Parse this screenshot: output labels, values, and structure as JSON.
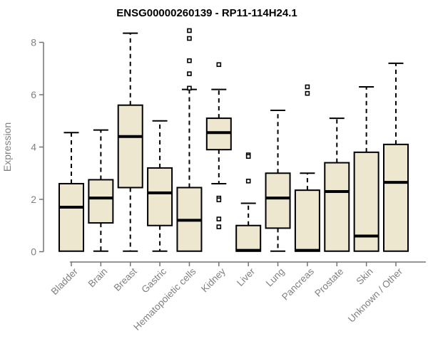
{
  "chart_data": {
    "type": "boxplot",
    "title": "ENSG00000260139 - RP11-114H24.1",
    "ylabel": "Expression",
    "xlabel": "",
    "yticks": [
      0,
      2,
      4,
      6,
      8
    ],
    "ylim": [
      -0.3,
      8.6
    ],
    "grid": false,
    "legend_position": "none",
    "categories": [
      "Bladder",
      "Brain",
      "Breast",
      "Gastric",
      "Hematopoietic cells",
      "Kidney",
      "Liver",
      "Lung",
      "Pancreas",
      "Prostate",
      "Skin",
      "Unknown / Other"
    ],
    "series": [
      {
        "category": "Bladder",
        "whisker_low": 0.02,
        "q1": 0.02,
        "median": 1.7,
        "q3": 2.6,
        "whisker_high": 4.55,
        "outliers": []
      },
      {
        "category": "Brain",
        "whisker_low": 0.02,
        "q1": 1.1,
        "median": 2.05,
        "q3": 2.75,
        "whisker_high": 4.65,
        "outliers": []
      },
      {
        "category": "Breast",
        "whisker_low": 0.02,
        "q1": 2.45,
        "median": 4.4,
        "q3": 5.6,
        "whisker_high": 8.35,
        "outliers": []
      },
      {
        "category": "Gastric",
        "whisker_low": 0.02,
        "q1": 1.0,
        "median": 2.25,
        "q3": 3.2,
        "whisker_high": 5.0,
        "outliers": []
      },
      {
        "category": "Hematopoietic cells",
        "whisker_low": 0.02,
        "q1": 0.02,
        "median": 1.2,
        "q3": 2.45,
        "whisker_high": 6.2,
        "outliers": [
          8.45,
          8.15,
          7.3,
          6.8,
          6.25
        ]
      },
      {
        "category": "Kidney",
        "whisker_low": 2.6,
        "q1": 3.9,
        "median": 4.55,
        "q3": 5.1,
        "whisker_high": 6.2,
        "outliers": [
          7.15,
          2.05,
          1.98,
          1.25,
          0.95
        ]
      },
      {
        "category": "Liver",
        "whisker_low": 0.02,
        "q1": 0.02,
        "median": 0.05,
        "q3": 1.0,
        "whisker_high": 1.85,
        "outliers": [
          3.7,
          3.64,
          2.7
        ]
      },
      {
        "category": "Lung",
        "whisker_low": 0.02,
        "q1": 0.9,
        "median": 2.05,
        "q3": 3.0,
        "whisker_high": 5.4,
        "outliers": []
      },
      {
        "category": "Pancreas",
        "whisker_low": 0.02,
        "q1": 0.02,
        "median": 0.05,
        "q3": 2.35,
        "whisker_high": 3.0,
        "outliers": [
          6.3,
          6.05
        ]
      },
      {
        "category": "Prostate",
        "whisker_low": 0.02,
        "q1": 0.02,
        "median": 2.3,
        "q3": 3.4,
        "whisker_high": 5.1,
        "outliers": []
      },
      {
        "category": "Skin",
        "whisker_low": 0.02,
        "q1": 0.02,
        "median": 0.6,
        "q3": 3.8,
        "whisker_high": 6.3,
        "outliers": []
      },
      {
        "category": "Unknown / Other",
        "whisker_low": 0.02,
        "q1": 0.02,
        "median": 2.65,
        "q3": 4.1,
        "whisker_high": 7.2,
        "outliers": []
      }
    ],
    "colors": {
      "box_fill": "#ede7cf",
      "box_stroke": "#000000",
      "median": "#000000",
      "whisker": "#000000",
      "outlier_stroke": "#000000",
      "outlier_fill": "#ffffff",
      "axis_line": "#737373",
      "axis_text": "#808080",
      "title_text": "#000000",
      "background": "#ffffff"
    }
  }
}
